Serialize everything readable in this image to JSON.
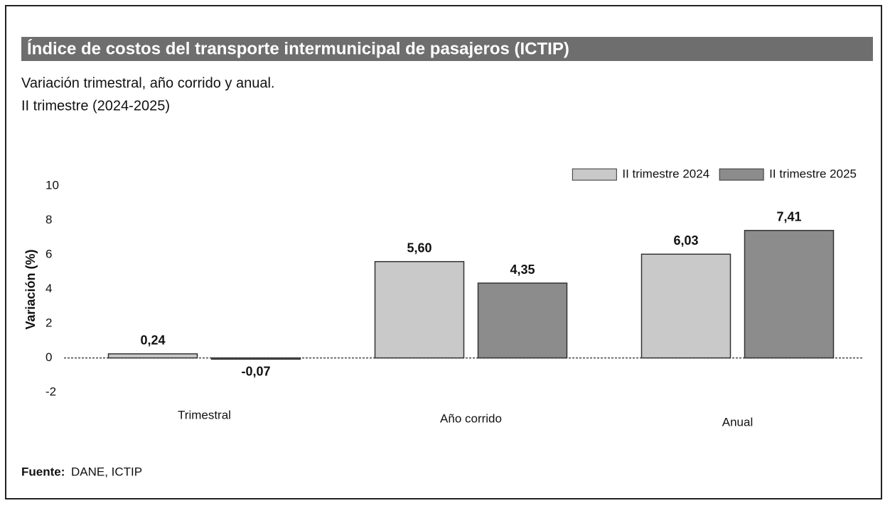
{
  "chart_data": {
    "type": "bar",
    "title": "Índice de costos del transporte intermunicipal de pasajeros (ICTIP)",
    "subtitle": [
      "Variación trimestral, año corrido y anual.",
      "II trimestre (2024-2025)"
    ],
    "y_label": "Variación (%)",
    "source_label": "Fuente:",
    "source": "DANE, ICTIP",
    "categories": [
      "Trimestral",
      "Año corrido",
      "Anual"
    ],
    "series": [
      {
        "name": "II trimestre 2024",
        "color": "#c9c9c9",
        "values": [
          0.24,
          5.6,
          6.03
        ],
        "value_labels": [
          "0,24",
          "5,60",
          "6,03"
        ]
      },
      {
        "name": "II trimestre 2025",
        "color": "#8c8c8c",
        "values": [
          -0.07,
          4.35,
          7.41
        ],
        "value_labels": [
          "-0,07",
          "4,35",
          "7,41"
        ]
      }
    ],
    "ylim": [
      -2,
      10
    ],
    "yticks": [
      -2,
      0,
      2,
      4,
      6,
      8,
      10
    ],
    "grid": false,
    "legend": "top-right"
  }
}
